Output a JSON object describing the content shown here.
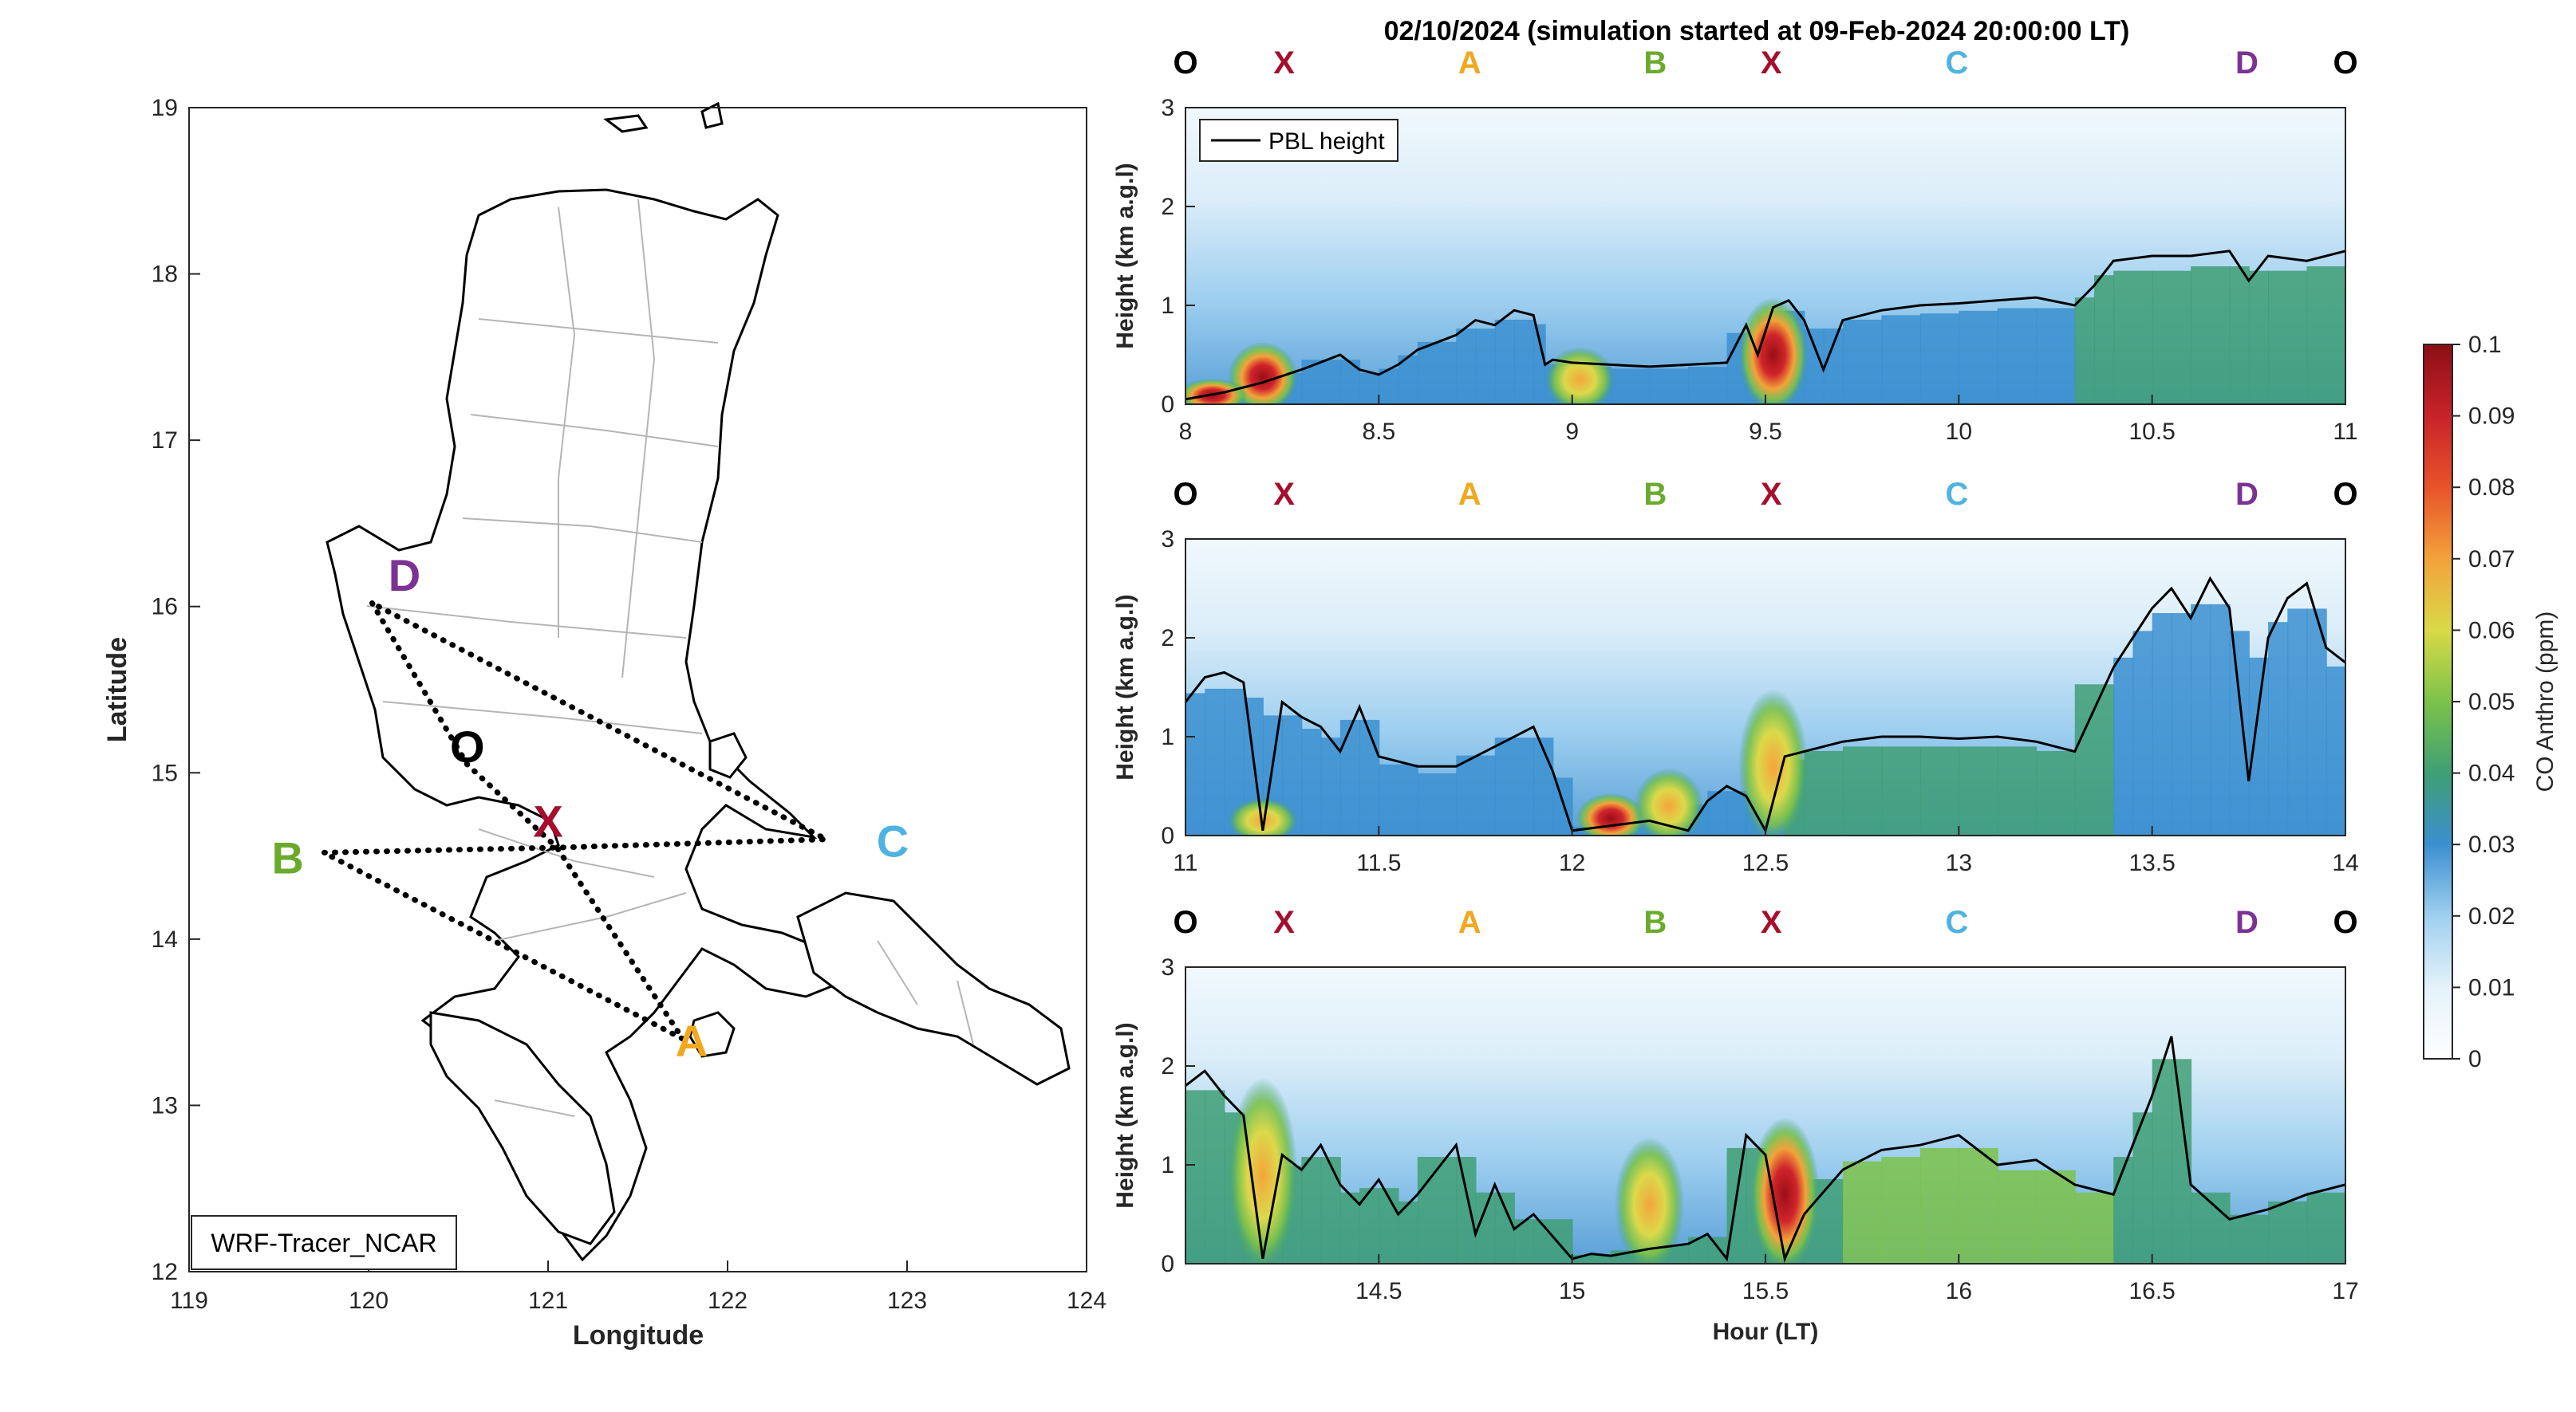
{
  "map": {
    "xlabel": "Longitude",
    "ylabel": "Latitude",
    "xlim": [
      119,
      124
    ],
    "ylim": [
      12,
      19
    ],
    "xticks": [
      119,
      120,
      121,
      122,
      123,
      124
    ],
    "yticks": [
      12,
      13,
      14,
      15,
      16,
      17,
      18,
      19
    ],
    "model_label": "WRF-Tracer_NCAR",
    "points": [
      {
        "label": "D",
        "lon": 120.2,
        "lat": 16.2,
        "color": "#7b3294"
      },
      {
        "label": "O",
        "lon": 120.55,
        "lat": 15.17,
        "color": "#000000"
      },
      {
        "label": "X",
        "lon": 121.0,
        "lat": 14.72,
        "color": "#a50f2d"
      },
      {
        "label": "B",
        "lon": 119.55,
        "lat": 14.5,
        "color": "#6aab2e"
      },
      {
        "label": "C",
        "lon": 122.92,
        "lat": 14.6,
        "color": "#4eb3e0"
      },
      {
        "label": "A",
        "lon": 121.8,
        "lat": 13.4,
        "color": "#f0a81e"
      }
    ],
    "route_lon": [
      120.02,
      120.55,
      121.05,
      121.75,
      119.75,
      121.05,
      122.55,
      120.02
    ],
    "route_lat": [
      16.02,
      15.05,
      14.55,
      13.4,
      14.52,
      14.55,
      14.6,
      16.02
    ]
  },
  "panels": {
    "title": "02/10/2024 (simulation started at 09-Feb-2024 20:00:00 LT)",
    "ylabel": "Height (km a.g.l)",
    "xlabel": "Hour (LT)",
    "legend_label": "PBL height",
    "route_labels": [
      {
        "label": "O",
        "frac": 0.0,
        "color": "#000000"
      },
      {
        "label": "X",
        "frac": 0.085,
        "color": "#a50f2d"
      },
      {
        "label": "A",
        "frac": 0.245,
        "color": "#f0a81e"
      },
      {
        "label": "B",
        "frac": 0.405,
        "color": "#6aab2e"
      },
      {
        "label": "X",
        "frac": 0.505,
        "color": "#a50f2d"
      },
      {
        "label": "C",
        "frac": 0.665,
        "color": "#4eb3e0"
      },
      {
        "label": "D",
        "frac": 0.915,
        "color": "#7b3294"
      },
      {
        "label": "O",
        "frac": 1.0,
        "color": "#000000"
      }
    ],
    "colorbar": {
      "label": "CO Anthro (ppm)",
      "min": 0,
      "max": 0.1,
      "ticks": [
        "0",
        "0.01",
        "0.02",
        "0.03",
        "0.04",
        "0.05",
        "0.06",
        "0.07",
        "0.08",
        "0.09",
        "0.1"
      ]
    }
  },
  "chart_data": [
    {
      "type": "line",
      "name": "panel-1",
      "xlim": [
        8,
        11
      ],
      "ylim": [
        0,
        3
      ],
      "xticks": [
        "8",
        "8.5",
        "9",
        "9.5",
        "10",
        "10.5",
        "11"
      ],
      "yticks": [
        "0",
        "1",
        "2",
        "3"
      ],
      "series": [
        {
          "name": "PBL height",
          "x": [
            8.0,
            8.1,
            8.2,
            8.3,
            8.4,
            8.45,
            8.5,
            8.55,
            8.6,
            8.7,
            8.75,
            8.8,
            8.85,
            8.9,
            8.93,
            8.95,
            9.0,
            9.1,
            9.2,
            9.3,
            9.4,
            9.45,
            9.48,
            9.52,
            9.56,
            9.6,
            9.65,
            9.7,
            9.8,
            9.9,
            10.0,
            10.1,
            10.2,
            10.3,
            10.35,
            10.4,
            10.5,
            10.6,
            10.7,
            10.75,
            10.8,
            10.9,
            11.0
          ],
          "y": [
            0.05,
            0.12,
            0.22,
            0.35,
            0.5,
            0.35,
            0.3,
            0.4,
            0.55,
            0.7,
            0.85,
            0.8,
            0.95,
            0.9,
            0.4,
            0.45,
            0.42,
            0.4,
            0.38,
            0.4,
            0.42,
            0.8,
            0.5,
            0.98,
            1.05,
            0.85,
            0.35,
            0.85,
            0.95,
            1.0,
            1.02,
            1.05,
            1.08,
            1.0,
            1.2,
            1.45,
            1.5,
            1.5,
            1.55,
            1.25,
            1.5,
            1.45,
            1.55
          ]
        }
      ],
      "co_features": [
        {
          "x": 8.2,
          "h": 0.55,
          "v": 0.1
        },
        {
          "x": 8.07,
          "h": 0.18,
          "v": 0.08
        },
        {
          "x": 9.02,
          "h": 0.5,
          "v": 0.06
        },
        {
          "x": 9.52,
          "h": 1.0,
          "v": 0.1
        }
      ]
    },
    {
      "type": "line",
      "name": "panel-2",
      "xlim": [
        11,
        14
      ],
      "ylim": [
        0,
        3
      ],
      "xticks": [
        "11",
        "11.5",
        "12",
        "12.5",
        "13",
        "13.5",
        "14"
      ],
      "yticks": [
        "0",
        "1",
        "2",
        "3"
      ],
      "series": [
        {
          "name": "PBL height",
          "x": [
            11.0,
            11.05,
            11.1,
            11.15,
            11.2,
            11.25,
            11.3,
            11.35,
            11.4,
            11.45,
            11.5,
            11.6,
            11.7,
            11.8,
            11.9,
            11.95,
            12.0,
            12.1,
            12.2,
            12.3,
            12.35,
            12.4,
            12.45,
            12.5,
            12.55,
            12.6,
            12.7,
            12.8,
            12.9,
            13.0,
            13.1,
            13.2,
            13.3,
            13.4,
            13.45,
            13.5,
            13.55,
            13.6,
            13.65,
            13.7,
            13.75,
            13.8,
            13.85,
            13.9,
            13.95,
            14.0
          ],
          "y": [
            1.35,
            1.6,
            1.65,
            1.55,
            0.05,
            1.35,
            1.2,
            1.1,
            0.85,
            1.3,
            0.8,
            0.7,
            0.7,
            0.9,
            1.1,
            0.65,
            0.05,
            0.1,
            0.15,
            0.05,
            0.35,
            0.5,
            0.4,
            0.05,
            0.8,
            0.85,
            0.95,
            1.0,
            1.0,
            0.98,
            1.0,
            0.95,
            0.85,
            1.7,
            2.0,
            2.3,
            2.5,
            2.2,
            2.6,
            2.3,
            0.55,
            2.0,
            2.4,
            2.55,
            1.9,
            1.75
          ]
        }
      ],
      "co_features": [
        {
          "x": 12.1,
          "h": 0.35,
          "v": 0.08
        },
        {
          "x": 12.25,
          "h": 0.6,
          "v": 0.05
        },
        {
          "x": 12.52,
          "h": 1.4,
          "v": 0.075
        },
        {
          "x": 11.2,
          "h": 0.3,
          "v": 0.06
        }
      ]
    },
    {
      "type": "line",
      "name": "panel-3",
      "xlim": [
        14,
        17
      ],
      "ylim": [
        0,
        3
      ],
      "xticks": [
        "14.5",
        "15",
        "15.5",
        "16",
        "16.5",
        "17"
      ],
      "yticks": [
        "0",
        "1",
        "2",
        "3"
      ],
      "series": [
        {
          "name": "PBL height",
          "x": [
            14.0,
            14.05,
            14.1,
            14.15,
            14.2,
            14.25,
            14.3,
            14.35,
            14.4,
            14.45,
            14.5,
            14.55,
            14.6,
            14.7,
            14.75,
            14.8,
            14.85,
            14.9,
            15.0,
            15.05,
            15.1,
            15.2,
            15.3,
            15.35,
            15.4,
            15.45,
            15.5,
            15.55,
            15.6,
            15.7,
            15.8,
            15.9,
            16.0,
            16.1,
            16.2,
            16.3,
            16.4,
            16.45,
            16.5,
            16.55,
            16.6,
            16.7,
            16.8,
            16.9,
            17.0
          ],
          "y": [
            1.8,
            1.95,
            1.7,
            1.5,
            0.05,
            1.1,
            0.95,
            1.2,
            0.8,
            0.6,
            0.85,
            0.5,
            0.7,
            1.2,
            0.3,
            0.8,
            0.35,
            0.5,
            0.05,
            0.1,
            0.08,
            0.15,
            0.2,
            0.3,
            0.05,
            1.3,
            1.1,
            0.05,
            0.5,
            0.95,
            1.15,
            1.2,
            1.3,
            1.0,
            1.05,
            0.8,
            0.7,
            1.2,
            1.7,
            2.3,
            0.8,
            0.45,
            0.55,
            0.7,
            0.8
          ]
        }
      ],
      "co_features": [
        {
          "x": 14.2,
          "h": 1.8,
          "v": 0.06
        },
        {
          "x": 15.2,
          "h": 1.2,
          "v": 0.065
        },
        {
          "x": 15.55,
          "h": 1.4,
          "v": 0.085
        }
      ]
    }
  ]
}
